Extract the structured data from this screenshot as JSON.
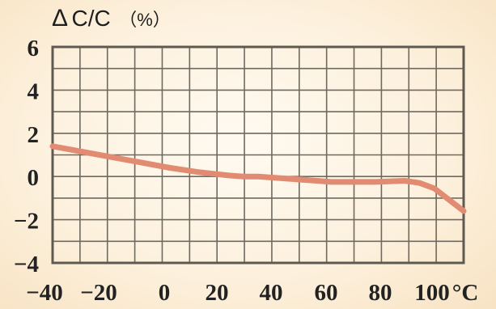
{
  "chart_data": {
    "type": "line",
    "title": "ΔC/C（%）",
    "title_parts": {
      "delta": "Δ",
      "main": "C/C",
      "unit": "（%）"
    },
    "xlabel": "",
    "ylabel": "",
    "x_tick_labels": [
      "−40",
      "−20",
      "0",
      "20",
      "40",
      "60",
      "80",
      "100"
    ],
    "x_unit": "°C",
    "y_tick_labels": [
      "6",
      "4",
      "2",
      "0",
      "−2",
      "−4"
    ],
    "xlim": [
      -40,
      100
    ],
    "ylim": [
      -4,
      6
    ],
    "grid": true,
    "legend": "none",
    "series": [
      {
        "x": [
          -40,
          -30,
          -20,
          -10,
          0,
          10,
          20,
          25,
          30,
          40,
          50,
          55,
          60,
          65,
          70,
          80,
          85,
          90,
          100
        ],
        "y": [
          1.4,
          1.15,
          0.9,
          0.65,
          0.4,
          0.2,
          0.05,
          0.0,
          0.0,
          -0.1,
          -0.2,
          -0.25,
          -0.25,
          -0.25,
          -0.25,
          -0.2,
          -0.3,
          -0.55,
          -1.6
        ]
      }
    ],
    "colors": {
      "line": "#e08b72",
      "grid": "#6e6a60",
      "frame": "#5f5a50",
      "text": "#222222"
    }
  }
}
